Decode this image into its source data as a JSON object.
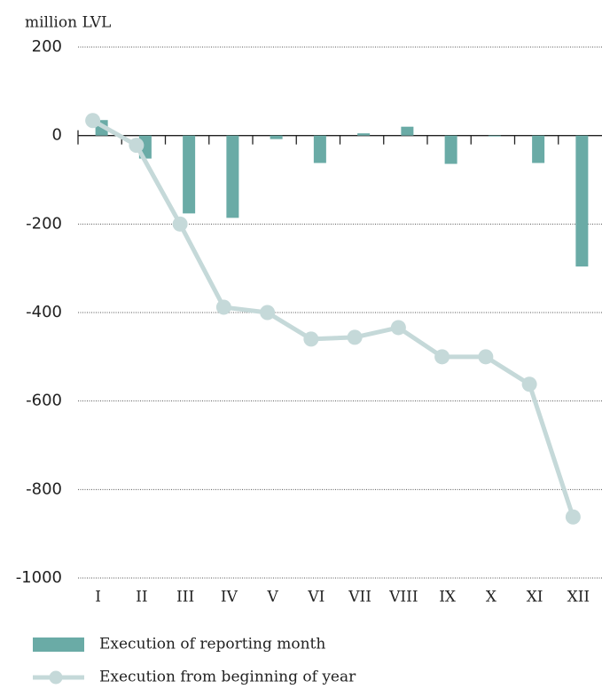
{
  "chart_data": {
    "type": "bar",
    "y_axis_label": "million LVL",
    "categories": [
      "I",
      "II",
      "III",
      "IV",
      "V",
      "VI",
      "VII",
      "VIII",
      "IX",
      "X",
      "XI",
      "XII"
    ],
    "series": [
      {
        "name": "Execution of reporting month",
        "type": "bar",
        "color": "#6aaba6",
        "values": [
          35,
          -52,
          -176,
          -186,
          -8,
          -62,
          5,
          20,
          -64,
          -1,
          -62,
          -296
        ]
      },
      {
        "name": "Execution from beginning of year",
        "type": "line",
        "color": "#c5d9d9",
        "values": [
          34,
          -22,
          -200,
          -388,
          -400,
          -460,
          -456,
          -434,
          -500,
          -500,
          -562,
          -862
        ]
      }
    ],
    "ylim": [
      -1000,
      200
    ],
    "yticks": [
      200,
      0,
      -200,
      -400,
      -600,
      -800,
      -1000
    ],
    "grid": true
  }
}
